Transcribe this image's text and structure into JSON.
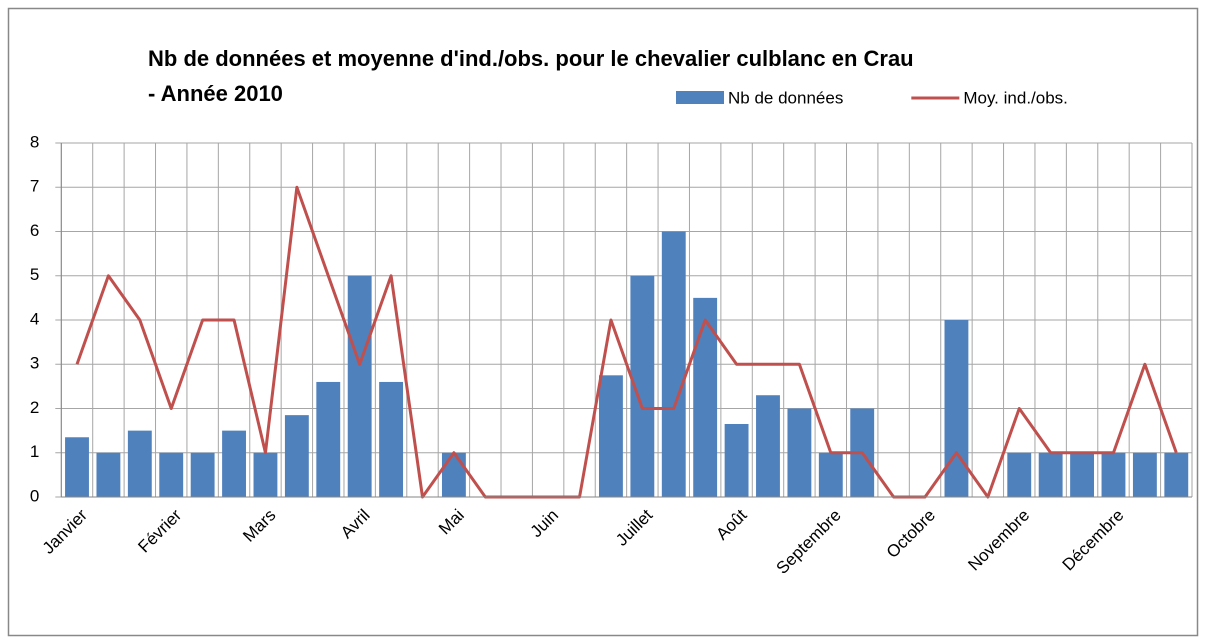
{
  "chart_data": {
    "type": "bar-line",
    "title": [
      "Nb de données et moyenne d'ind./obs. pour le chevalier culblanc en Crau",
      "- Année 2010"
    ],
    "categories": [
      "Janvier",
      null,
      null,
      "Février",
      null,
      null,
      "Mars",
      null,
      null,
      "Avril",
      null,
      null,
      "Mai",
      null,
      null,
      "Juin",
      null,
      null,
      "Juillet",
      null,
      null,
      "Août",
      null,
      null,
      "Septembre",
      null,
      null,
      "Octobre",
      null,
      null,
      "Novembre",
      null,
      null,
      "Décembre",
      null,
      null
    ],
    "series": [
      {
        "name": "Nb de données",
        "type": "bar",
        "color": "#4f81bd",
        "values": [
          1.35,
          1,
          1.5,
          1,
          1,
          1.5,
          1,
          1.85,
          2.6,
          5,
          2.6,
          null,
          1,
          null,
          null,
          null,
          null,
          2.75,
          5,
          6,
          4.5,
          1.65,
          2.3,
          2,
          1,
          2,
          null,
          null,
          4,
          null,
          1,
          1,
          1,
          1,
          1,
          1
        ]
      },
      {
        "name": "Moy. ind./obs.",
        "type": "line",
        "color": "#c0504d",
        "values": [
          3,
          5,
          4,
          2,
          4,
          4,
          1,
          7,
          5,
          3,
          5,
          0,
          1,
          0,
          0,
          0,
          0,
          4,
          2,
          2,
          4,
          3,
          3,
          3,
          1,
          1,
          0,
          0,
          1,
          0,
          2,
          1,
          1,
          1,
          3,
          1
        ]
      }
    ],
    "ylim": [
      0,
      8
    ],
    "yticks": [
      0,
      1,
      2,
      3,
      4,
      5,
      6,
      7,
      8
    ],
    "grid": true,
    "legend": "top-right"
  }
}
